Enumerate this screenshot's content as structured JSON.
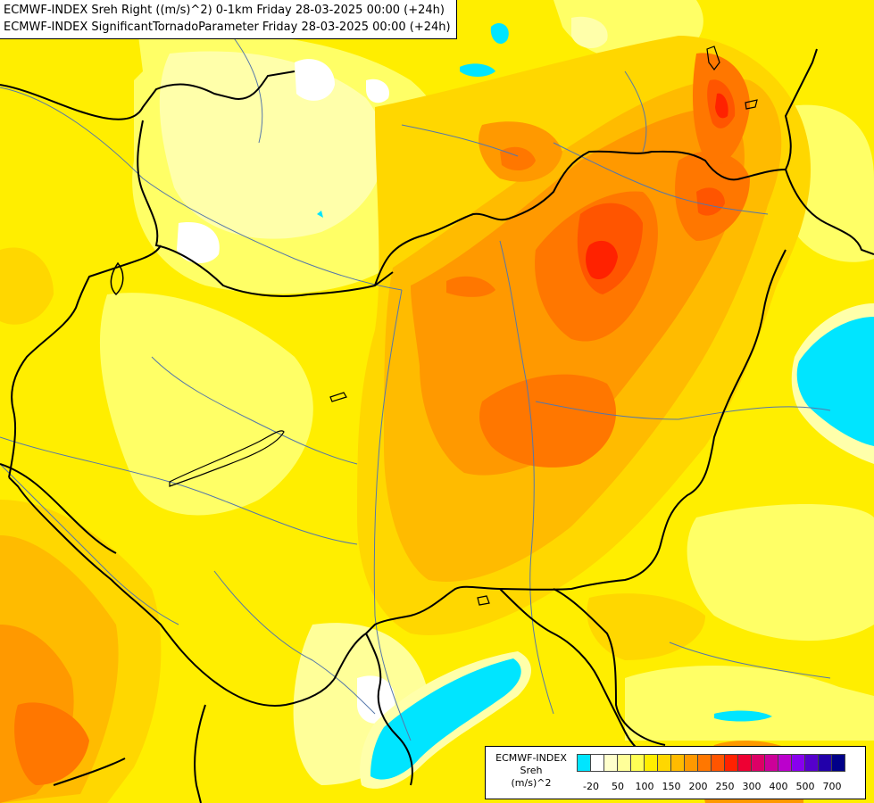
{
  "header": {
    "line1": "ECMWF-INDEX Sreh Right ((m/s)^2) 0-1km Friday 28-03-2025 00:00 (+24h)",
    "line2": "ECMWF-INDEX SignificantTornadoParameter Friday 28-03-2025 00:00 (+24h)"
  },
  "legend": {
    "line1": "ECMWF-INDEX",
    "line2": "Sreh",
    "line3": "(m/s)^2",
    "ticks": [
      "-20",
      "50",
      "100",
      "150",
      "200",
      "250",
      "300",
      "400",
      "500",
      "700"
    ],
    "colors": [
      "#00e5ff",
      "#ffffff",
      "#ffffcc",
      "#ffff99",
      "#ffff55",
      "#ffee00",
      "#ffd700",
      "#ffbb00",
      "#ff9900",
      "#ff7700",
      "#ff5500",
      "#ff2200",
      "#ee0033",
      "#dd0066",
      "#cc0099",
      "#bb00cc",
      "#8800ee",
      "#5500cc",
      "#2200aa",
      "#000088"
    ]
  },
  "map_colors": {
    "background": "#ffee00",
    "cyan": "#00e5ff",
    "white": "#ffffff",
    "pale": "#ffffaa",
    "light_yellow": "#ffff66",
    "gold": "#ffd700",
    "amber": "#ffbb00",
    "orange": "#ff9900",
    "dark_orange": "#ff7700",
    "red_orange": "#ff5500",
    "red": "#ff2200",
    "border_color": "#000000",
    "river_color": "#5577aa"
  }
}
